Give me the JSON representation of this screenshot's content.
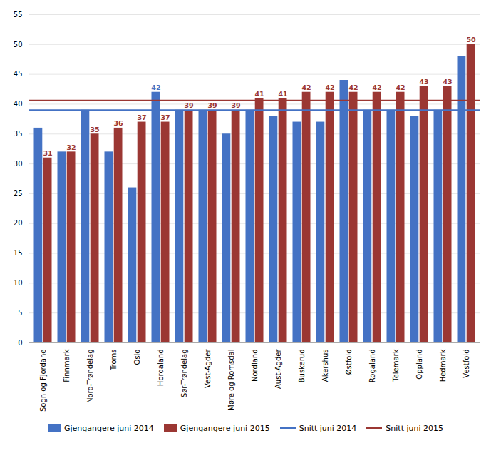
{
  "chart_data": {
    "type": "bar",
    "categories": [
      "Sogn og Fjordane",
      "Finnmark",
      "Nord-Trøndelag",
      "Troms",
      "Oslo",
      "Hordaland",
      "Sør-Trøndelag",
      "Vest-Agder",
      "Møre og Romsdal",
      "Nordland",
      "Aust-Agder",
      "Buskerud",
      "Akershus",
      "Østfold",
      "Rogaland",
      "Telemark",
      "Oppland",
      "Hedmark",
      "Vestfold"
    ],
    "series": [
      {
        "name": "Gjengangere juni 2014",
        "type": "bar",
        "color": "#4472C4",
        "values": [
          36,
          32,
          39,
          32,
          26,
          42,
          39,
          39,
          35,
          39,
          38,
          37,
          37,
          44,
          39,
          39,
          38,
          39,
          48
        ],
        "value_labels": [
          null,
          null,
          null,
          null,
          null,
          "42",
          null,
          null,
          null,
          null,
          null,
          null,
          null,
          null,
          null,
          null,
          null,
          null,
          null
        ]
      },
      {
        "name": "Gjengangere juni 2015",
        "type": "bar",
        "color": "#9B3733",
        "values": [
          31,
          32,
          35,
          36,
          37,
          37,
          39,
          39,
          39,
          41,
          41,
          42,
          42,
          42,
          42,
          42,
          43,
          43,
          50
        ],
        "data_labels": true
      },
      {
        "name": "Snitt juni 2014",
        "type": "hline",
        "color": "#4472C4",
        "value": 39.0
      },
      {
        "name": "Snitt juni 2015",
        "type": "hline",
        "color": "#9B3733",
        "value": 40.6
      }
    ],
    "ylim": [
      0,
      55
    ],
    "yticks": [
      0,
      5,
      10,
      15,
      20,
      25,
      30,
      35,
      40,
      45,
      50,
      55
    ],
    "grid": true,
    "legend": "bottom"
  }
}
